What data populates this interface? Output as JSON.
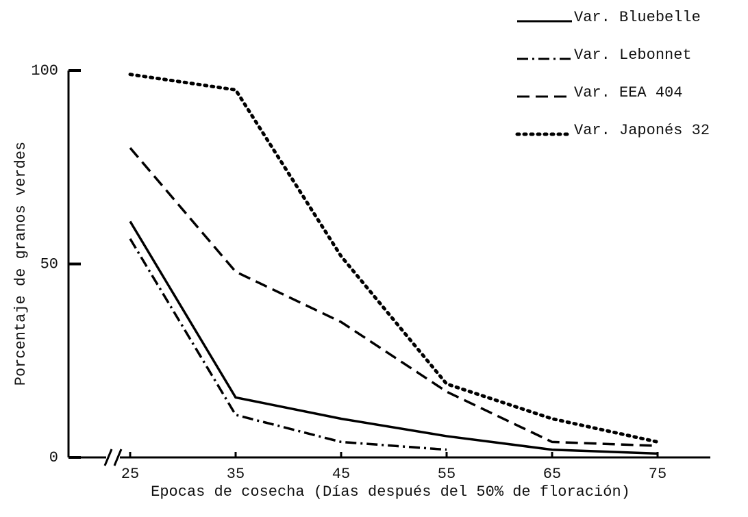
{
  "chart_data": {
    "type": "line",
    "xlabel": "Epocas de cosecha (Días después del 50% de floración)",
    "ylabel": "Porcentaje de granos verdes",
    "x": [
      25,
      35,
      45,
      55,
      65,
      75
    ],
    "series": [
      {
        "name": "Var. Bluebelle",
        "color": "#000000",
        "dash": "solid",
        "values": [
          61,
          15.5,
          10,
          5.5,
          2,
          1
        ]
      },
      {
        "name": "Var. Lebonnet",
        "color": "#000000",
        "dash": "dashdot",
        "values": [
          56.5,
          11,
          4,
          2,
          null,
          null
        ]
      },
      {
        "name": "Var. EEA 404",
        "color": "#000000",
        "dash": "dashed",
        "values": [
          80,
          48,
          35,
          17,
          4,
          3
        ]
      },
      {
        "name": "Var. Japonés 32",
        "color": "#000000",
        "dash": "dotted",
        "values": [
          99,
          95,
          52,
          19,
          10,
          4
        ]
      }
    ],
    "xlim": [
      20,
      80
    ],
    "xticks": [
      25,
      35,
      45,
      55,
      65,
      75
    ],
    "ylim": [
      0,
      100
    ],
    "yticks": [
      0,
      50,
      100
    ],
    "legend": "top-right"
  }
}
